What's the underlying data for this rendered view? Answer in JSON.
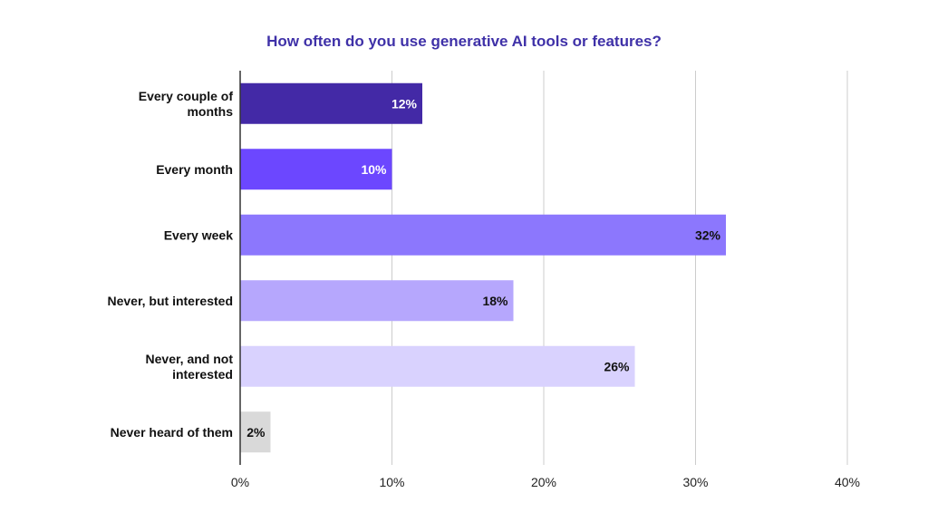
{
  "chart_data": {
    "type": "bar",
    "orientation": "horizontal",
    "title": "How often do you use generative AI tools or features?",
    "categories": [
      [
        "Every couple of",
        "months"
      ],
      [
        "Every month"
      ],
      [
        "Every week"
      ],
      [
        "Never, but interested"
      ],
      [
        "Never, and not",
        "interested"
      ],
      [
        "Never heard of them"
      ]
    ],
    "values": [
      12,
      10,
      32,
      18,
      26,
      2
    ],
    "value_labels": [
      "12%",
      "10%",
      "32%",
      "18%",
      "26%",
      "2%"
    ],
    "bar_colors": [
      "#4329a6",
      "#6c47ff",
      "#8c77fd",
      "#b6a7fd",
      "#d9d2fe",
      "#d9d9d9"
    ],
    "label_colors": [
      "#ffffff",
      "#ffffff",
      "#111111",
      "#111111",
      "#111111",
      "#111111"
    ],
    "xlim": [
      0,
      40
    ],
    "xticks": [
      0,
      10,
      20,
      30,
      40
    ],
    "xtick_labels": [
      "0%",
      "10%",
      "20%",
      "30%",
      "40%"
    ],
    "grid": true,
    "legend": "none",
    "xlabel": "",
    "ylabel": ""
  }
}
